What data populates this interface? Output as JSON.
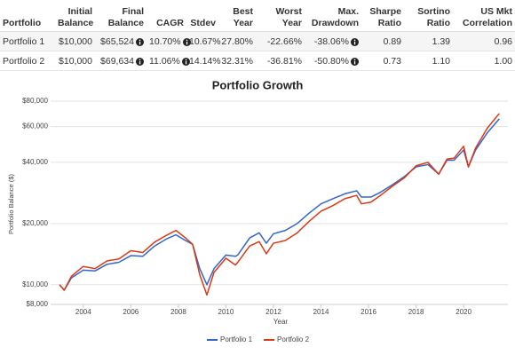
{
  "table": {
    "headers": [
      "Portfolio",
      "Initial Balance",
      "Final Balance",
      "CAGR",
      "Stdev",
      "Best Year",
      "Worst Year",
      "Max. Drawdown",
      "Sharpe Ratio",
      "Sortino Ratio",
      "US Mkt Correlation"
    ],
    "rows": [
      [
        "Portfolio 1",
        "$10,000",
        "$65,524",
        "10.70%",
        "10.67%",
        "27.80%",
        "-22.66%",
        "-38.06%",
        "0.89",
        "1.39",
        "0.96"
      ],
      [
        "Portfolio 2",
        "$10,000",
        "$69,634",
        "11.06%",
        "14.14%",
        "32.31%",
        "-36.81%",
        "-50.80%",
        "0.73",
        "1.10",
        "1.00"
      ]
    ]
  },
  "chart_data": {
    "type": "line",
    "title": "Portfolio Growth",
    "x_label": "Year",
    "y_label": "Portfolio Balance ($)",
    "log_y": true,
    "grid": true,
    "legend": "bottom",
    "x": [
      2003.0,
      2003.2,
      2003.5,
      2004.0,
      2004.5,
      2005.0,
      2005.5,
      2006.0,
      2006.5,
      2007.0,
      2007.5,
      2007.9,
      2008.3,
      2008.6,
      2008.9,
      2009.2,
      2009.5,
      2010.0,
      2010.4,
      2010.5,
      2011.0,
      2011.4,
      2011.7,
      2012.0,
      2012.5,
      2013.0,
      2013.5,
      2014.0,
      2014.5,
      2015.0,
      2015.5,
      2015.7,
      2016.1,
      2016.5,
      2017.0,
      2017.5,
      2018.0,
      2018.5,
      2018.95,
      2019.3,
      2019.6,
      2020.0,
      2020.2,
      2020.5,
      2021.0,
      2021.5
    ],
    "series": [
      {
        "name": "Portfolio 1",
        "color": "#3366cc",
        "values": [
          10000,
          9400,
          10800,
          11800,
          11700,
          12600,
          12900,
          13900,
          13800,
          15500,
          16800,
          17600,
          16500,
          15800,
          12000,
          10000,
          12000,
          14000,
          13800,
          14000,
          17000,
          18000,
          16000,
          17800,
          18500,
          20000,
          22500,
          25000,
          26500,
          28000,
          29000,
          27000,
          27000,
          28500,
          31000,
          34000,
          38000,
          39000,
          35000,
          41000,
          41000,
          46000,
          38000,
          46000,
          56000,
          65524
        ]
      },
      {
        "name": "Portfolio 2",
        "color": "#dc3912",
        "values": [
          10000,
          9400,
          11000,
          12300,
          12000,
          13100,
          13400,
          14700,
          14400,
          16200,
          17500,
          18500,
          17000,
          15800,
          11200,
          8900,
          11500,
          13500,
          12500,
          12900,
          15500,
          16300,
          14200,
          16000,
          16500,
          18000,
          20500,
          23000,
          24500,
          26500,
          27500,
          25000,
          25500,
          27500,
          30500,
          33500,
          38500,
          40000,
          35000,
          41500,
          42000,
          48000,
          38000,
          47000,
          59000,
          69634
        ]
      }
    ],
    "xlim": [
      2003.0,
      2021.6
    ],
    "xticks": [
      2004,
      2006,
      2008,
      2010,
      2012,
      2014,
      2016,
      2018,
      2020
    ],
    "ylim": [
      8000,
      80000
    ],
    "yticks": [
      {
        "value": 8000,
        "label": "$8,000"
      },
      {
        "value": 10000,
        "label": "$10,000"
      },
      {
        "value": 20000,
        "label": "$20,000"
      },
      {
        "value": 40000,
        "label": "$40,000"
      },
      {
        "value": 60000,
        "label": "$60,000"
      },
      {
        "value": 80000,
        "label": "$80,000"
      }
    ]
  }
}
